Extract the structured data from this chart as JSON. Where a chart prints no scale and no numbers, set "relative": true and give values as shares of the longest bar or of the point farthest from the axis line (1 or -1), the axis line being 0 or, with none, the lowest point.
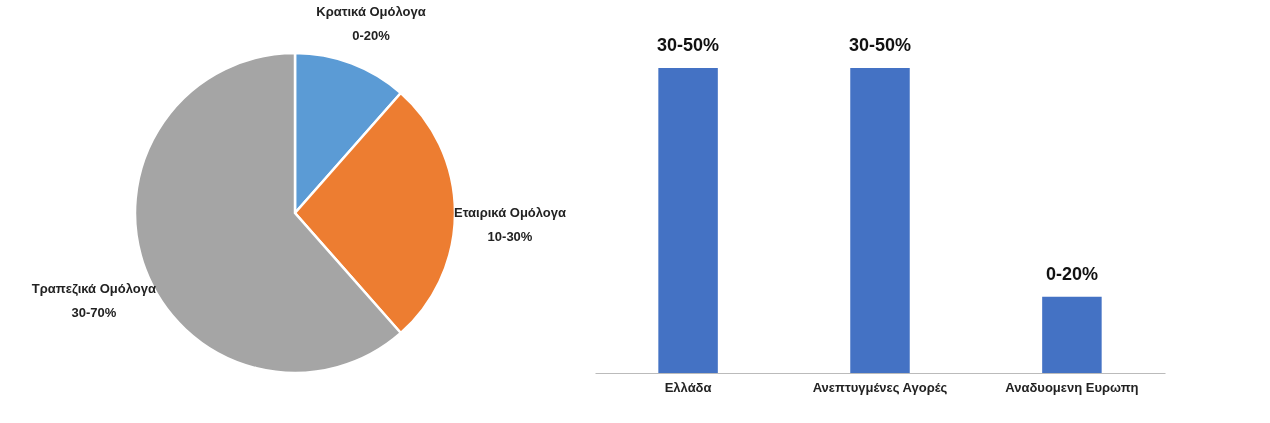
{
  "chart_data": [
    {
      "type": "pie",
      "categories": [
        "Κρατικά  Ομόλογα",
        "Εταιρικά Ομόλογα",
        "Τραπεζικά Ομόλογα"
      ],
      "values": [
        11.5,
        27,
        61.5
      ],
      "colors": [
        "#5b9bd5",
        "#ed7d31",
        "#a5a5a5"
      ],
      "annotations": [
        {
          "text": "0-20%",
          "x": "Κρατικά  Ομόλογα"
        },
        {
          "text": "10-30%",
          "x": "Εταιρικά Ομόλογα"
        },
        {
          "text": "30-70%",
          "x": "Τραπεζικά Ομόλογα"
        }
      ]
    },
    {
      "type": "bar",
      "relative": true,
      "categories": [
        "Ελλάδα",
        "Ανεπτυγμένες Αγορές",
        "Αναδυομενη Ευρωπη"
      ],
      "values": [
        1,
        1,
        0.25
      ],
      "color": "#4472c4",
      "grid": false,
      "annotations": [
        {
          "text": "30-50%",
          "x": "Ελλάδα",
          "y": 1
        },
        {
          "text": "30-50%",
          "x": "Ανεπτυγμένες Αγορές",
          "y": 1
        },
        {
          "text": "0-20%",
          "x": "Αναδυομενη Ευρωπη",
          "y": 0.25
        }
      ]
    }
  ]
}
